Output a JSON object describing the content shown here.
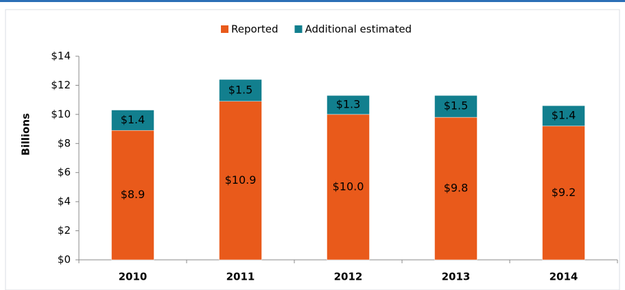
{
  "chart_data": {
    "type": "stacked_bar",
    "ylabel": "Billions",
    "categories": [
      "2010",
      "2011",
      "2012",
      "2013",
      "2014"
    ],
    "series": [
      {
        "name": "Reported",
        "color": "#e95a1b",
        "values": [
          8.9,
          10.9,
          10.0,
          9.8,
          9.2
        ],
        "value_labels": [
          "$8.9",
          "$10.9",
          "$10.0",
          "$9.8",
          "$9.2"
        ]
      },
      {
        "name": "Additional estimated",
        "color": "#127f8e",
        "values": [
          1.4,
          1.5,
          1.3,
          1.5,
          1.4
        ],
        "value_labels": [
          "$1.4",
          "$1.5",
          "$1.3",
          "$1.5",
          "$1.4"
        ]
      }
    ],
    "ylim": [
      0,
      14
    ],
    "yticks": [
      {
        "value": 0,
        "label": "$0"
      },
      {
        "value": 2,
        "label": "$2"
      },
      {
        "value": 4,
        "label": "$4"
      },
      {
        "value": 6,
        "label": "$6"
      },
      {
        "value": 8,
        "label": "$8"
      },
      {
        "value": 10,
        "label": "$10"
      },
      {
        "value": 12,
        "label": "$12"
      },
      {
        "value": 14,
        "label": "$14"
      }
    ],
    "legend": "top"
  }
}
